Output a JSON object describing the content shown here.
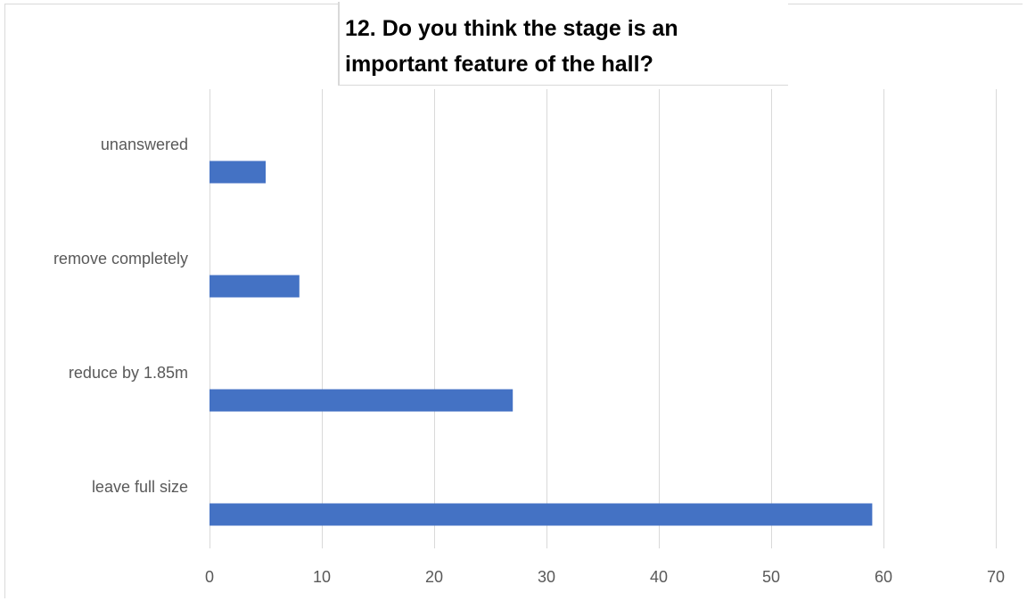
{
  "chart_data": {
    "type": "bar",
    "orientation": "horizontal",
    "title": "12. Do you think the stage is an important feature of the hall?",
    "categories": [
      "unanswered",
      "remove completely",
      "reduce by 1.85m",
      "leave full size"
    ],
    "values": [
      5,
      8,
      27,
      59
    ],
    "xlim": [
      0,
      70
    ],
    "xticks": [
      0,
      10,
      20,
      30,
      40,
      50,
      60,
      70
    ],
    "grid": "vertical",
    "legend": "none",
    "bar_color": "#4472c4",
    "gridline_color": "#d9d9d9",
    "label_color": "#595959"
  }
}
